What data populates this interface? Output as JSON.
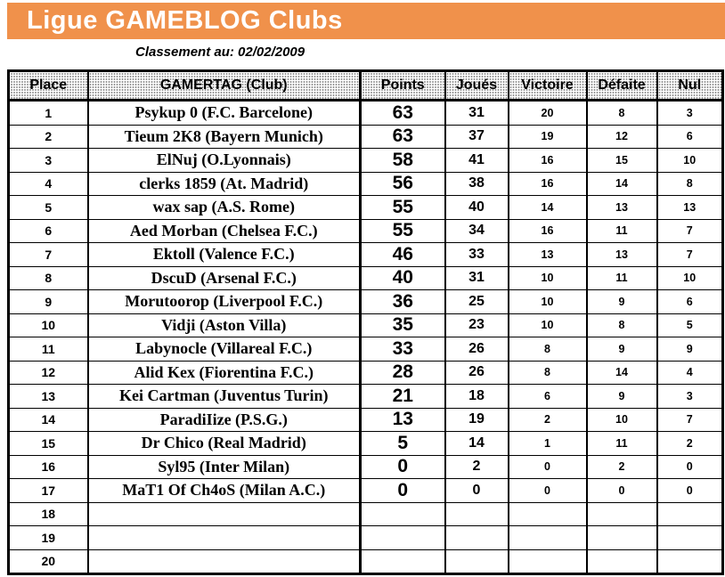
{
  "banner": {
    "title": "Ligue GAMEBLOG Clubs"
  },
  "subtitle": "Classement au: 02/02/2009",
  "colors": {
    "banner_bg": "#F0914B",
    "banner_text": "#FFFFFF",
    "table_border": "#000000",
    "header_dot_gray": "#8F8F8F"
  },
  "table": {
    "headers": [
      "Place",
      "GAMERTAG (Club)",
      "Points",
      "Joués",
      "Victoire",
      "Défaite",
      "Nul"
    ],
    "rows": [
      {
        "place": "1",
        "gamertag": "Psykup 0 (F.C. Barcelone)",
        "points": "63",
        "joues": "31",
        "victoire": "20",
        "defaite": "8",
        "nul": "3"
      },
      {
        "place": "2",
        "gamertag": "Tieum 2K8 (Bayern Munich)",
        "points": "63",
        "joues": "37",
        "victoire": "19",
        "defaite": "12",
        "nul": "6"
      },
      {
        "place": "3",
        "gamertag": "ElNuj (O.Lyonnais)",
        "points": "58",
        "joues": "41",
        "victoire": "16",
        "defaite": "15",
        "nul": "10"
      },
      {
        "place": "4",
        "gamertag": "clerks 1859 (At. Madrid)",
        "points": "56",
        "joues": "38",
        "victoire": "16",
        "defaite": "14",
        "nul": "8"
      },
      {
        "place": "5",
        "gamertag": "wax sap (A.S. Rome)",
        "points": "55",
        "joues": "40",
        "victoire": "14",
        "defaite": "13",
        "nul": "13"
      },
      {
        "place": "6",
        "gamertag": "Aed Morban (Chelsea F.C.)",
        "points": "55",
        "joues": "34",
        "victoire": "16",
        "defaite": "11",
        "nul": "7"
      },
      {
        "place": "7",
        "gamertag": "Ektoll (Valence F.C.)",
        "points": "46",
        "joues": "33",
        "victoire": "13",
        "defaite": "13",
        "nul": "7"
      },
      {
        "place": "8",
        "gamertag": "DscuD (Arsenal F.C.)",
        "points": "40",
        "joues": "31",
        "victoire": "10",
        "defaite": "11",
        "nul": "10"
      },
      {
        "place": "9",
        "gamertag": "Morutoorop (Liverpool F.C.)",
        "points": "36",
        "joues": "25",
        "victoire": "10",
        "defaite": "9",
        "nul": "6"
      },
      {
        "place": "10",
        "gamertag": "Vidji (Aston Villa)",
        "points": "35",
        "joues": "23",
        "victoire": "10",
        "defaite": "8",
        "nul": "5"
      },
      {
        "place": "11",
        "gamertag": "Labynocle (Villareal F.C.)",
        "points": "33",
        "joues": "26",
        "victoire": "8",
        "defaite": "9",
        "nul": "9"
      },
      {
        "place": "12",
        "gamertag": "Alid Kex (Fiorentina F.C.)",
        "points": "28",
        "joues": "26",
        "victoire": "8",
        "defaite": "14",
        "nul": "4"
      },
      {
        "place": "13",
        "gamertag": "Kei Cartman (Juventus Turin)",
        "points": "21",
        "joues": "18",
        "victoire": "6",
        "defaite": "9",
        "nul": "3"
      },
      {
        "place": "14",
        "gamertag": "ParadiIize (P.S.G.)",
        "points": "13",
        "joues": "19",
        "victoire": "2",
        "defaite": "10",
        "nul": "7"
      },
      {
        "place": "15",
        "gamertag": "Dr Chico (Real Madrid)",
        "points": "5",
        "joues": "14",
        "victoire": "1",
        "defaite": "11",
        "nul": "2"
      },
      {
        "place": "16",
        "gamertag": "Syl95 (Inter Milan)",
        "points": "0",
        "joues": "2",
        "victoire": "0",
        "defaite": "2",
        "nul": "0"
      },
      {
        "place": "17",
        "gamertag": "MaT1 Of Ch4oS (Milan A.C.)",
        "points": "0",
        "joues": "0",
        "victoire": "0",
        "defaite": "0",
        "nul": "0"
      },
      {
        "place": "18",
        "gamertag": "",
        "points": "",
        "joues": "",
        "victoire": "",
        "defaite": "",
        "nul": ""
      },
      {
        "place": "19",
        "gamertag": "",
        "points": "",
        "joues": "",
        "victoire": "",
        "defaite": "",
        "nul": ""
      },
      {
        "place": "20",
        "gamertag": "",
        "points": "",
        "joues": "",
        "victoire": "",
        "defaite": "",
        "nul": ""
      }
    ]
  }
}
